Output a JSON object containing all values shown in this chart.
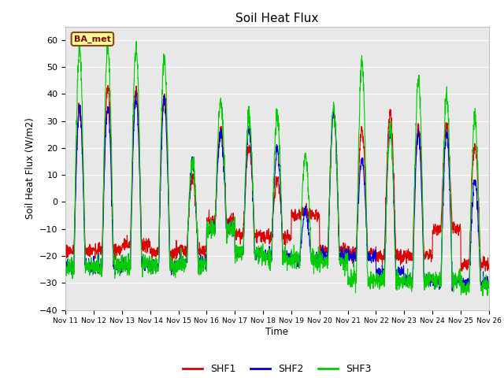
{
  "title": "Soil Heat Flux",
  "ylabel": "Soil Heat Flux (W/m2)",
  "xlabel": "Time",
  "ylim": [
    -40,
    65
  ],
  "yticks": [
    -40,
    -30,
    -20,
    -10,
    0,
    10,
    20,
    30,
    40,
    50,
    60
  ],
  "plot_bg_color": "#e8e8e8",
  "fig_bg_color": "#ffffff",
  "shf1_color": "#dd0000",
  "shf2_color": "#0000dd",
  "shf3_color": "#00cc00",
  "legend_label": "BA_met",
  "legend_box_color": "#ffff99",
  "legend_box_edge": "#8b4513",
  "series_labels": [
    "SHF1",
    "SHF2",
    "SHF3"
  ],
  "xtick_labels": [
    "Nov 11",
    "Nov 12",
    "Nov 13",
    "Nov 14",
    "Nov 15",
    "Nov 16",
    "Nov 17",
    "Nov 18",
    "Nov 19",
    "Nov 20",
    "Nov 21",
    "Nov 22",
    "Nov 23",
    "Nov 24",
    "Nov 25",
    "Nov 26"
  ],
  "n_days": 15,
  "pts_per_day": 144
}
